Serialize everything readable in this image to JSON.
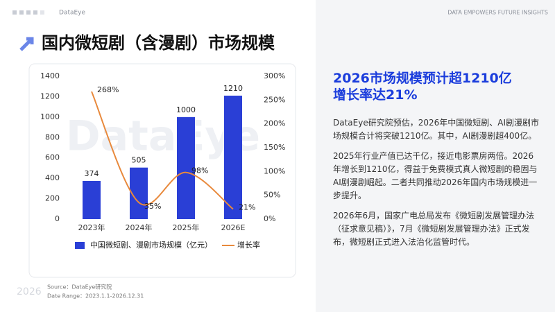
{
  "header": {
    "brand": "DataEye",
    "tagline": "DATA EMPOWERS FUTURE INSIGHTS",
    "title": "国内微短剧（含漫剧）市场规模"
  },
  "chart_data": {
    "type": "bar-line",
    "watermark": "DataEye",
    "categories": [
      "2023年",
      "2024年",
      "2025年",
      "2026E"
    ],
    "series": [
      {
        "name": "中国微短剧、漫剧市场规模（亿元）",
        "color": "#2a3fd6",
        "type": "bar",
        "values": [
          374,
          505,
          1000,
          1210
        ]
      },
      {
        "name": "增长率",
        "color": "#e8893c",
        "type": "line",
        "axis": "y2",
        "values": [
          268,
          35,
          98,
          21
        ],
        "value_labels": [
          "268%",
          "35%",
          "98%",
          "21%"
        ]
      }
    ],
    "ylim": [
      0,
      1400
    ],
    "yticks": [
      0,
      200,
      400,
      600,
      800,
      1000,
      1200,
      1400
    ],
    "y2lim": [
      0,
      300
    ],
    "y2ticks": [
      {
        "value": 0,
        "label": "0%"
      },
      {
        "value": 50,
        "label": "50%"
      },
      {
        "value": 100,
        "label": "100%"
      },
      {
        "value": 150,
        "label": "150%"
      },
      {
        "value": 200,
        "label": "200%"
      },
      {
        "value": 250,
        "label": "250%"
      },
      {
        "value": 300,
        "label": "300%"
      }
    ],
    "grid": false,
    "legend": "bottom"
  },
  "side": {
    "headline": [
      "2026市场规模预计超1210亿",
      "增长率达21%"
    ],
    "paragraphs": [
      "DataEye研究院预估，2026年中国微短剧、AI剧漫剧市场规模合计将突破1210亿。其中，AI剧漫剧超400亿。",
      "2025年行业产值已达千亿，接近电影票房两倍。2026年增长到1210亿，得益于免费模式真人微短剧的稳固与AI剧漫剧崛起。二者共同推动2026年国内市场规模进一步提升。",
      "2026年6月，国家广电总局发布《微短剧发展管理办法（征求意见稿）》，7月《微短剧发展管理办法》正式发布，微短剧正式进入法治化监管时代。"
    ]
  },
  "footer": {
    "year": "2026",
    "source": "Source：DataEye研究院",
    "range": "Date Range：2023.1.1-2026.12.31"
  }
}
